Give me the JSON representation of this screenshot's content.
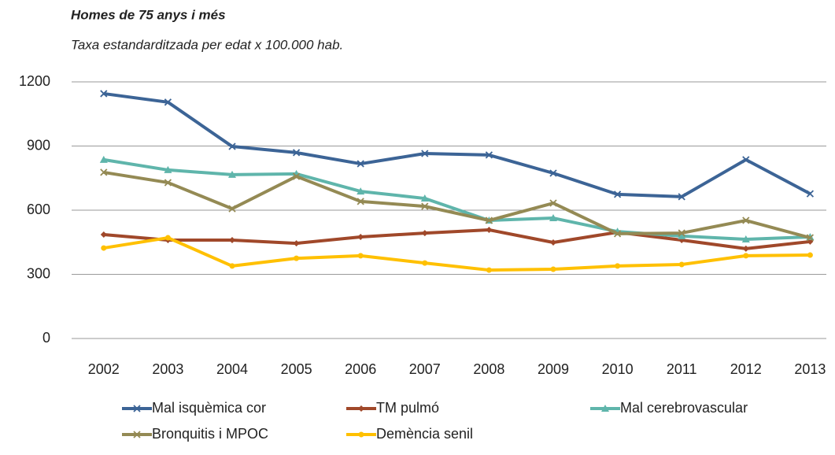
{
  "chart_data": {
    "type": "line",
    "title": "Homes de 75 anys i més",
    "subtitle": "Taxa estandarditzada per edat x 100.000 hab.",
    "categories": [
      "2002",
      "2003",
      "2004",
      "2005",
      "2006",
      "2007",
      "2008",
      "2009",
      "2010",
      "2011",
      "2012",
      "2013"
    ],
    "ylim": [
      0,
      1200
    ],
    "yticks": [
      0,
      300,
      600,
      900,
      1200
    ],
    "grid": true,
    "legend": "bottom",
    "series": [
      {
        "name": "Mal isquèmica cor",
        "color": "#3c6496",
        "marker": "x",
        "values": [
          1145,
          1105,
          898,
          869,
          817,
          865,
          858,
          773,
          674,
          663,
          836,
          677
        ]
      },
      {
        "name": "TM pulmó",
        "color": "#a0482a",
        "marker": "diamond",
        "values": [
          486,
          460,
          460,
          445,
          475,
          493,
          508,
          449,
          497,
          460,
          420,
          453
        ]
      },
      {
        "name": "Mal cerebrovascular",
        "color": "#5fb5ab",
        "marker": "triangle",
        "values": [
          836,
          788,
          766,
          770,
          688,
          655,
          552,
          563,
          500,
          479,
          464,
          475
        ]
      },
      {
        "name": "Bronquitis i MPOC",
        "color": "#948a54",
        "marker": "x",
        "values": [
          777,
          729,
          607,
          758,
          641,
          618,
          552,
          633,
          490,
          493,
          552,
          471
        ]
      },
      {
        "name": "Demència senil",
        "color": "#ffc000",
        "marker": "circle",
        "values": [
          423,
          471,
          339,
          375,
          387,
          353,
          320,
          324,
          339,
          346,
          387,
          390
        ]
      }
    ]
  }
}
